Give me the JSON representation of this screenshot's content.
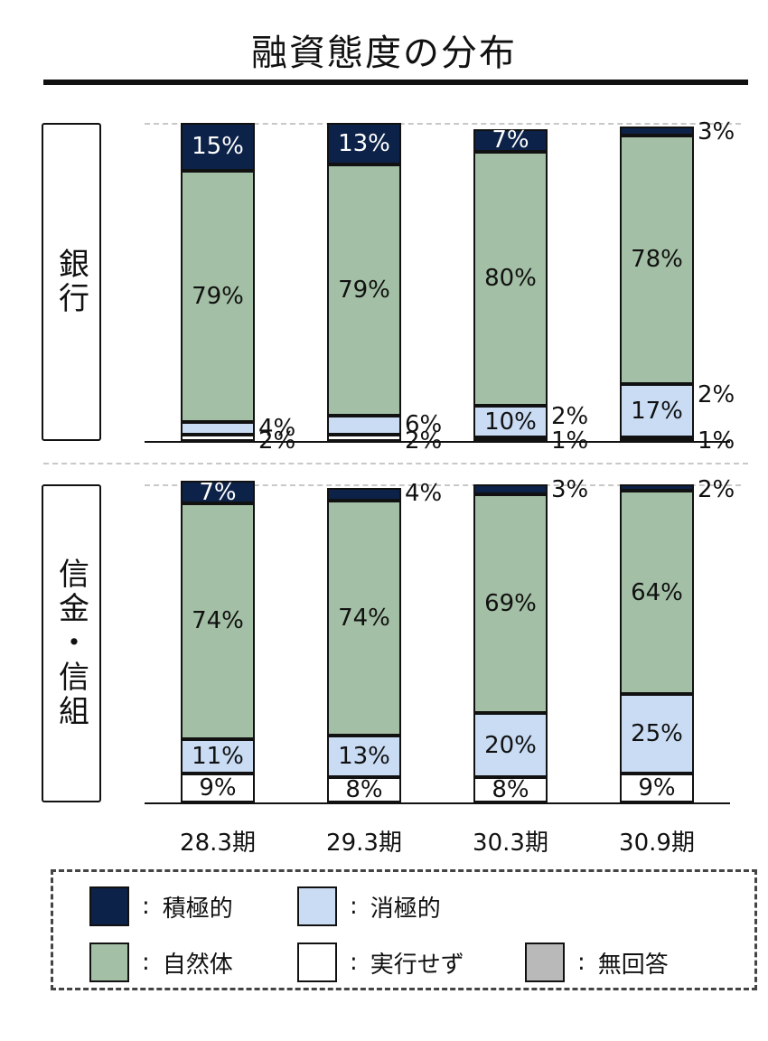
{
  "title": "融資態度の分布",
  "chart_data": {
    "type": "bar",
    "stacked": true,
    "categories": [
      "28.3期",
      "29.3期",
      "30.3期",
      "30.9期"
    ],
    "ylim": [
      0,
      100
    ],
    "grid": true,
    "legend_placement": "bottom",
    "series_colors": {
      "積極的": "#0c2248",
      "自然体": "#a3bfa5",
      "消極的": "#c9dcf4",
      "実行せず": "#ffffff",
      "無回答": "#b9b9b9"
    },
    "groups": [
      {
        "label": "銀行",
        "series": [
          {
            "name": "実行せず",
            "values": [
              2,
              2,
              1,
              1
            ],
            "labels": [
              "2%",
              "2%",
              "1%",
              "1%"
            ]
          },
          {
            "name": "消極的",
            "values": [
              4,
              6,
              10,
              17
            ],
            "labels": [
              "4%",
              "6%",
              "10%",
              "17%"
            ]
          },
          {
            "name": "自然体",
            "values": [
              79,
              79,
              80,
              78
            ],
            "labels": [
              "79%",
              "79%",
              "80%",
              "78%"
            ]
          },
          {
            "name": "積極的",
            "values": [
              15,
              13,
              7,
              3
            ],
            "labels": [
              "15%",
              "13%",
              "7%",
              "3%"
            ]
          }
        ],
        "second_outside_labels": [
          null,
          null,
          "2%",
          "2%"
        ]
      },
      {
        "label": "信金・信組",
        "series": [
          {
            "name": "実行せず",
            "values": [
              9,
              8,
              8,
              9
            ],
            "labels": [
              "9%",
              "8%",
              "8%",
              "9%"
            ]
          },
          {
            "name": "消極的",
            "values": [
              11,
              13,
              20,
              25
            ],
            "labels": [
              "11%",
              "13%",
              "20%",
              "25%"
            ]
          },
          {
            "name": "自然体",
            "values": [
              74,
              74,
              69,
              64
            ],
            "labels": [
              "74%",
              "74%",
              "69%",
              "64%"
            ]
          },
          {
            "name": "積極的",
            "values": [
              7,
              4,
              3,
              2
            ],
            "labels": [
              "7%",
              "4%",
              "3%",
              "2%"
            ]
          }
        ]
      }
    ]
  },
  "legend": [
    {
      "name": "積極的",
      "colon": ":",
      "color": "#0c2248"
    },
    {
      "name": "消極的",
      "colon": ":",
      "color": "#c9dcf4"
    },
    {
      "name": "自然体",
      "colon": ":",
      "color": "#a3bfa5"
    },
    {
      "name": "実行せず",
      "colon": ":",
      "color": "#ffffff"
    },
    {
      "name": "無回答",
      "colon": ":",
      "color": "#b9b9b9"
    }
  ]
}
